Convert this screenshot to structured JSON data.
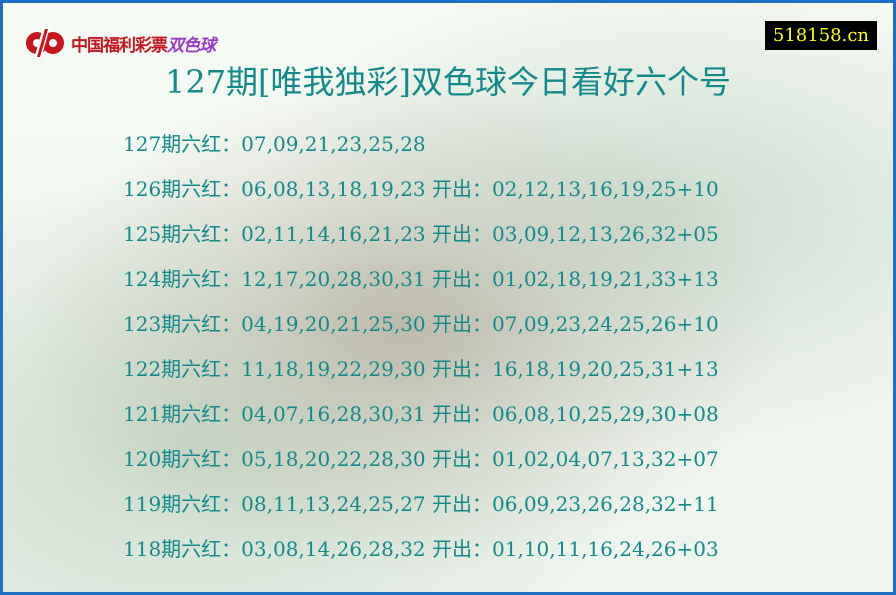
{
  "header": {
    "logo_text": "中国福利彩票",
    "logo_game": "双色球",
    "site": "518158.cn"
  },
  "title": "127期[唯我独彩]双色球今日看好六个号",
  "rows": [
    "127期六红：07,09,21,23,25,28",
    "126期六红：06,08,13,18,19,23 开出：02,12,13,16,19,25+10",
    "125期六红：02,11,14,16,21,23 开出：03,09,12,13,26,32+05",
    "124期六红：12,17,20,28,30,31 开出：01,02,18,19,21,33+13",
    "123期六红：04,19,20,21,25,30 开出：07,09,23,24,25,26+10",
    "122期六红：11,18,19,22,29,30 开出：16,18,19,20,25,31+13",
    "121期六红：04,07,16,28,30,31 开出：06,08,10,25,29,30+08",
    "120期六红：05,18,20,22,28,30 开出：01,02,04,07,13,32+07",
    "119期六红：08,11,13,24,25,27 开出：06,09,23,26,28,32+11",
    "118期六红：03,08,14,26,28,32 开出：01,10,11,16,24,26+03"
  ],
  "colors": {
    "text": "#138a8a",
    "border": "#1f6fc5",
    "logo_red": "#c8161d",
    "site_bg": "#000000",
    "site_fg": "#ffff00"
  }
}
